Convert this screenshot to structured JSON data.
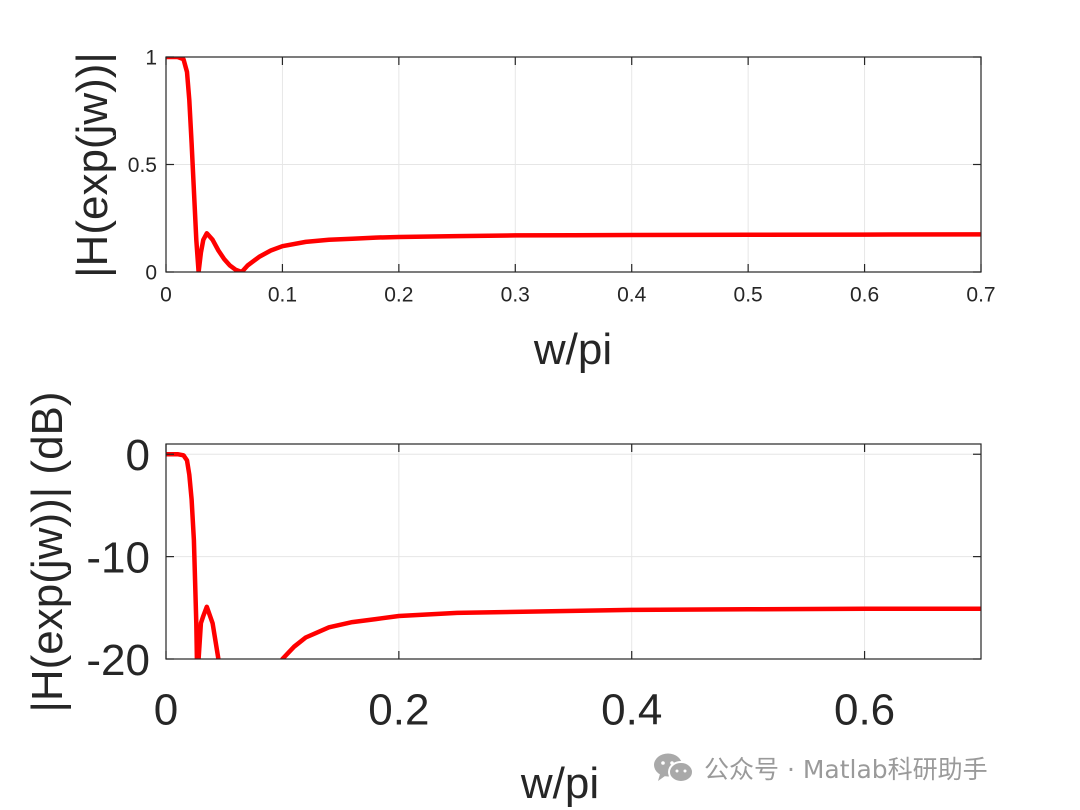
{
  "figure": {
    "line_color": "#ff0000",
    "grid_color": "#e6e6e6",
    "axes_color": "#262626"
  },
  "watermark": {
    "text": "公众号 · Matlab科研助手",
    "icon": "wechat-icon"
  },
  "chart_data": [
    {
      "type": "line",
      "xlabel": "w/pi",
      "ylabel": "|H(exp(jw))|",
      "xlim": [
        0,
        0.7
      ],
      "ylim": [
        0,
        1
      ],
      "xticks": [
        0,
        0.1,
        0.2,
        0.3,
        0.4,
        0.5,
        0.6,
        0.7
      ],
      "xtick_labels": [
        "0",
        "0.1",
        "0.2",
        "0.3",
        "0.4",
        "0.5",
        "0.6",
        "0.7"
      ],
      "yticks": [
        0,
        0.5,
        1
      ],
      "ytick_labels": [
        "0",
        "0.5",
        "1"
      ],
      "grid": true,
      "series": [
        {
          "color": "#ff0000",
          "x": [
            0,
            0.01,
            0.015,
            0.018,
            0.02,
            0.022,
            0.024,
            0.026,
            0.028,
            0.03,
            0.032,
            0.035,
            0.04,
            0.045,
            0.05,
            0.055,
            0.06,
            0.065,
            0.07,
            0.08,
            0.09,
            0.1,
            0.12,
            0.14,
            0.16,
            0.18,
            0.2,
            0.25,
            0.3,
            0.35,
            0.4,
            0.5,
            0.6,
            0.7
          ],
          "y": [
            1,
            1,
            0.99,
            0.93,
            0.8,
            0.6,
            0.38,
            0.15,
            0,
            0.09,
            0.15,
            0.18,
            0.15,
            0.1,
            0.06,
            0.03,
            0.01,
            0,
            0.03,
            0.07,
            0.1,
            0.12,
            0.14,
            0.15,
            0.155,
            0.16,
            0.163,
            0.167,
            0.17,
            0.171,
            0.172,
            0.173,
            0.174,
            0.175
          ]
        }
      ]
    },
    {
      "type": "line",
      "xlabel": "w/pi",
      "ylabel": "|H(exp(jw))| (dB)",
      "xlim": [
        0,
        0.7
      ],
      "ylim": [
        -20,
        1
      ],
      "xticks": [
        0,
        0.2,
        0.4,
        0.6
      ],
      "xtick_labels": [
        "0",
        "0.2",
        "0.4",
        "0.6"
      ],
      "yticks": [
        -20,
        -10,
        0
      ],
      "ytick_labels": [
        "-20",
        "-10",
        "0"
      ],
      "grid": true,
      "series": [
        {
          "color": "#ff0000",
          "segments": [
            {
              "x": [
                0,
                0.01,
                0.015,
                0.018,
                0.02,
                0.022,
                0.024,
                0.026,
                0.0265
              ],
              "y": [
                0,
                0,
                -0.1,
                -0.6,
                -2,
                -4.4,
                -8.4,
                -16.5,
                -20
              ]
            },
            {
              "x": [
                0.028,
                0.03,
                0.032,
                0.035,
                0.04,
                0.045,
                0.047,
                0.049
              ],
              "y": [
                -20,
                -16.5,
                -15.8,
                -14.9,
                -16.5,
                -20,
                -22,
                -24
              ]
            },
            {
              "x": [
                0.1,
                0.11,
                0.12,
                0.14,
                0.16,
                0.18,
                0.2,
                0.25,
                0.3,
                0.35,
                0.4,
                0.5,
                0.6,
                0.7
              ],
              "y": [
                -20,
                -18.8,
                -17.9,
                -16.9,
                -16.4,
                -16.1,
                -15.8,
                -15.5,
                -15.4,
                -15.3,
                -15.2,
                -15.15,
                -15.1,
                -15.1
              ]
            }
          ]
        }
      ]
    }
  ]
}
